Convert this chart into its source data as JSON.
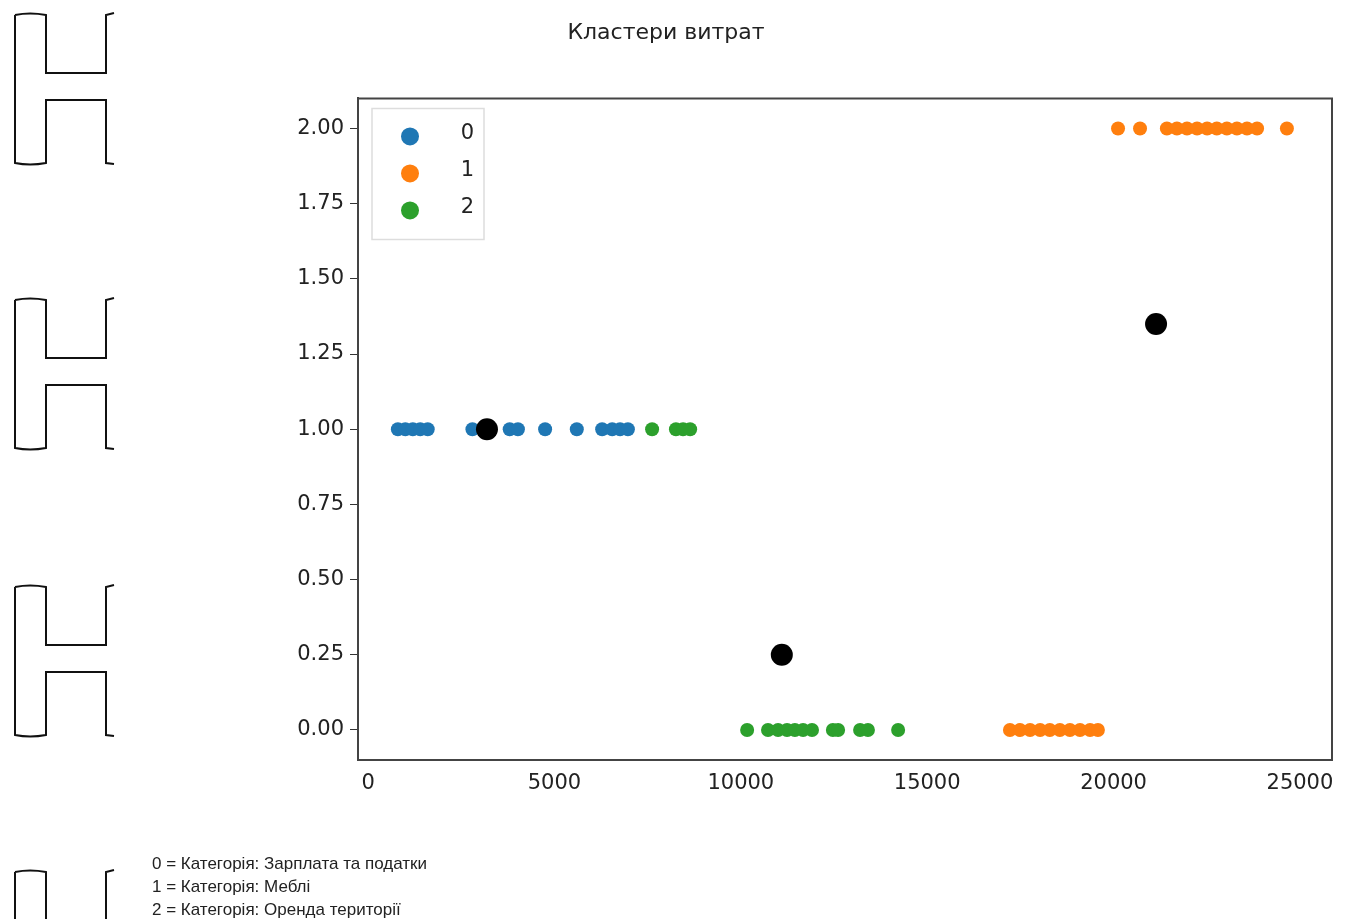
{
  "chart_data": {
    "type": "scatter",
    "title": "Кластери витрат",
    "xlim": [
      -270,
      25860
    ],
    "xticks": [
      0,
      5000,
      10000,
      15000,
      20000,
      25000
    ],
    "ylim": [
      -0.1,
      2.1
    ],
    "yticks": [
      {
        "value": 0,
        "label": "0.00"
      },
      {
        "value": 0.25,
        "label": "0.25"
      },
      {
        "value": 0.5,
        "label": "0.50"
      },
      {
        "value": 0.75,
        "label": "0.75"
      },
      {
        "value": 1,
        "label": "1.00"
      },
      {
        "value": 1.25,
        "label": "1.25"
      },
      {
        "value": 1.5,
        "label": "1.50"
      },
      {
        "value": 1.75,
        "label": "1.75"
      },
      {
        "value": 2,
        "label": "2.00"
      }
    ],
    "grid": false,
    "legend": "top left",
    "marker": "circle",
    "series": [
      {
        "name": "0",
        "color": "#1f77b4",
        "x": [
          800,
          1000,
          1200,
          1400,
          1600,
          2800,
          3800,
          4020,
          4750,
          5600,
          6280,
          6550,
          6760,
          6970
        ],
        "values": [
          1,
          1,
          1,
          1,
          1,
          1,
          1,
          1,
          1,
          1,
          1,
          1,
          1,
          1
        ]
      },
      {
        "name": "1",
        "color": "#ff7f0e",
        "x": [
          17220,
          17490,
          17760,
          18030,
          18290,
          18560,
          18830,
          19100,
          19370,
          19580,
          20120,
          20710,
          21430,
          21700,
          21970,
          22240,
          22510,
          22770,
          23040,
          23310,
          23580,
          23850,
          24650
        ],
        "values": [
          0,
          0,
          0,
          0,
          0,
          0,
          0,
          0,
          0,
          0,
          2,
          2,
          2,
          2,
          2,
          2,
          2,
          2,
          2,
          2,
          2,
          2,
          2
        ]
      },
      {
        "name": "2",
        "color": "#2ca02c",
        "x": [
          7620,
          8260,
          8450,
          8640,
          10170,
          10730,
          11000,
          11240,
          11450,
          11670,
          11910,
          12470,
          12610,
          13200,
          13410,
          14220
        ],
        "values": [
          1,
          1,
          1,
          1,
          0,
          0,
          0,
          0,
          0,
          0,
          0,
          0,
          0,
          0,
          0,
          0
        ]
      },
      {
        "color": "#000000",
        "x": [
          3190,
          11100,
          21140
        ],
        "values": [
          1,
          0.25,
          1.35
        ]
      }
    ],
    "annotations": [
      "0 = Категорія: Зарплата та податки",
      "1 = Категорія: Меблі",
      "2 = Категорія: Оренда території"
    ]
  }
}
